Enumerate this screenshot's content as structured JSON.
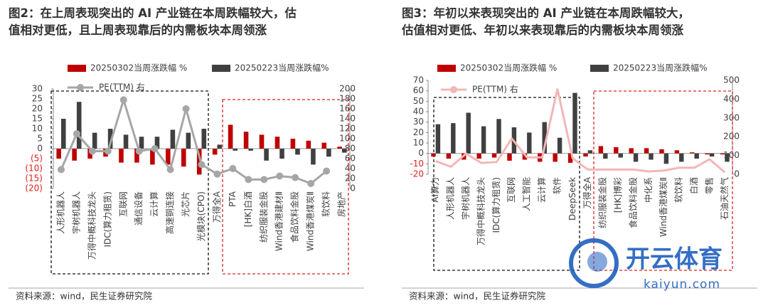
{
  "chart_data": [
    {
      "type": "bar",
      "title": [
        "图2：在上周表现突出的 AI 产业链在本周跌幅较大，估",
        "值相对更低，且上周表现靠后的内需板块本周领涨"
      ],
      "source": "资料来源：wind，民生证券研究院",
      "categories": [
        "人形机器人",
        "宇树机器人",
        "万得中概科技龙头",
        "IDC(算力租赁)",
        "互联网",
        "通信设备",
        "云计算",
        "高速铜连接",
        "光芯片",
        "光模块(CPO)",
        "万得全A",
        "PTA",
        "[HK]白酒",
        "纺织服装金股",
        "Wind香港建材Ⅱ",
        "食品饮料金股",
        "Wind香港煤炭Ⅱ",
        "软饮料",
        "房地产"
      ],
      "series": [
        {
          "name": "20250302当周涨跌幅 %",
          "color": "#c00000",
          "values": [
            -5,
            -6,
            -5,
            -4,
            -7,
            -7,
            -8,
            -8,
            -9,
            -13,
            -3,
            12,
            8.5,
            7,
            6,
            5,
            4,
            3,
            1
          ]
        },
        {
          "name": "20250223当周涨跌幅%",
          "color": "#404040",
          "values": [
            15,
            23.5,
            8,
            10,
            7,
            6,
            6,
            9.5,
            8,
            10,
            2,
            -1,
            -1,
            -6,
            -5,
            -3,
            -8,
            -4,
            -2
          ]
        },
        {
          "name": "PE(TTM) 右",
          "color": "#a6a6a6",
          "axis": "y2",
          "line": true,
          "markers": true,
          "values": [
            38,
            110,
            75,
            75,
            178,
            75,
            80,
            38,
            160,
            48,
            29,
            40,
            18,
            18,
            25,
            22,
            10,
            35,
            null
          ]
        }
      ],
      "ylim": [
        -20,
        30
      ],
      "yticks": [
        {
          "value": -20,
          "label": "(20)"
        },
        {
          "value": -15,
          "label": "(15)"
        },
        {
          "value": -10,
          "label": "(10)"
        },
        {
          "value": -5,
          "label": "(5)"
        },
        0,
        5,
        10,
        15,
        20,
        25,
        30
      ],
      "y2lim": [
        0,
        200
      ],
      "y2ticks": [
        0,
        20,
        40,
        60,
        80,
        100,
        120,
        140,
        160,
        180,
        200
      ]
    },
    {
      "type": "bar",
      "title": [
        "图3：年初以来表现突出的 AI 产业链在本周跌幅较大，",
        "估值相对更低、年初以来表现靠后的内需板块本周领涨"
      ],
      "source": "资料来源：wind，民生证券研究院",
      "categories": [
        "AI算力",
        "人形机器人",
        "宇树机器人",
        "万得中概科技龙头",
        "IDC(算力租赁)",
        "互联网",
        "人工智能",
        "云计算",
        "软件",
        "DeepSeek",
        "万得全A",
        "纺织服装金股",
        "[HK]博彩",
        "食品饮料金股",
        "中化系",
        "Wind香港煤炭Ⅱ",
        "软饮料",
        "白酒",
        "零售",
        "石油天然气"
      ],
      "series": [
        {
          "name": "20250302当周涨跌幅 %",
          "color": "#c00000",
          "values": [
            -3,
            -5,
            -6,
            -5,
            -4,
            -7,
            -6,
            -8,
            -8,
            -9,
            -3,
            7,
            6,
            5,
            5,
            4,
            3,
            1,
            -1,
            -1
          ]
        },
        {
          "name": "20250223当周涨跌幅%",
          "color": "#404040",
          "values": [
            28,
            29,
            39,
            26,
            33,
            25,
            20,
            30,
            15,
            58,
            3,
            -5,
            -4,
            -8,
            -6,
            -10,
            -8,
            -5,
            -3,
            -8
          ]
        },
        {
          "name": "PE(TTM) 右",
          "color": "#f4b6b6",
          "axis": "y2",
          "line": true,
          "markers": false,
          "values": [
            70,
            40,
            110,
            60,
            65,
            190,
            90,
            90,
            455,
            85,
            25,
            25,
            25,
            25,
            15,
            20,
            35,
            35,
            80,
            10
          ]
        }
      ],
      "ylim": [
        -20,
        70
      ],
      "yticks": [
        -20,
        -10,
        0,
        10,
        20,
        30,
        40,
        50,
        60,
        70
      ],
      "y2lim": [
        0,
        500
      ],
      "y2ticks": [
        0,
        100,
        200,
        300,
        400,
        500
      ]
    }
  ],
  "watermark": {
    "name": "开云体育",
    "url": "kaiyun.com"
  }
}
